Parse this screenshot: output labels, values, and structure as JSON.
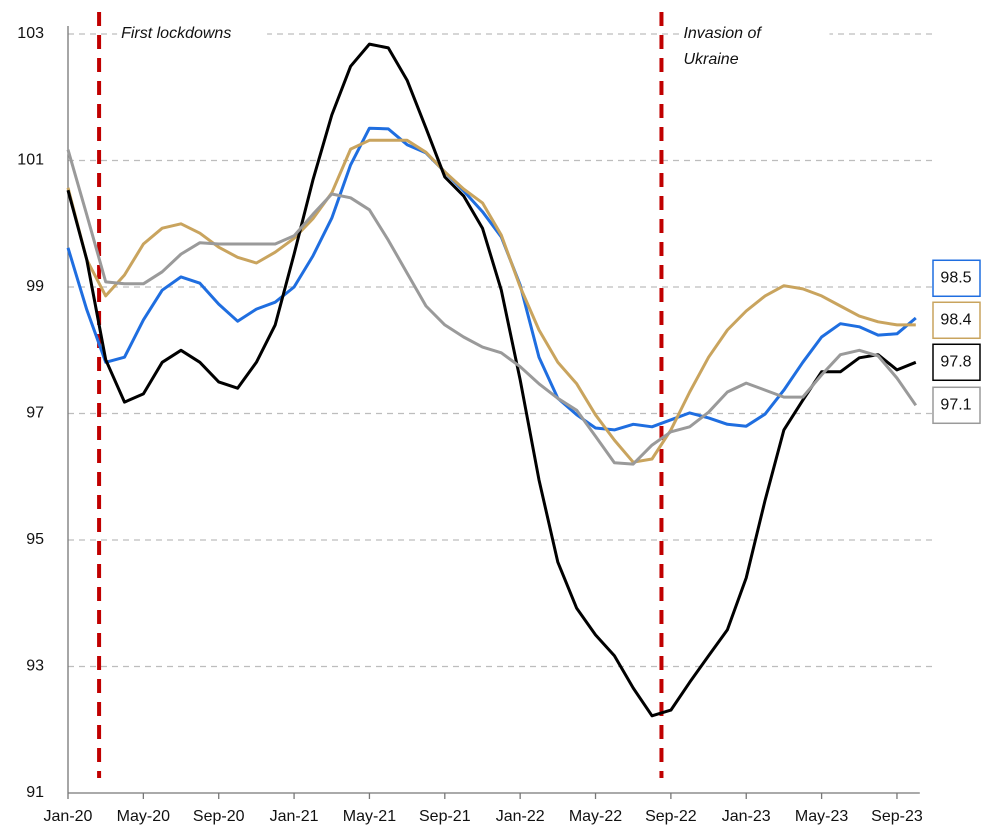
{
  "chart_data": {
    "type": "line",
    "categories": [
      "Jan-20",
      null,
      null,
      null,
      "May-20",
      null,
      null,
      null,
      "Sep-20",
      null,
      null,
      null,
      "Jan-21",
      null,
      null,
      null,
      "May-21",
      null,
      null,
      null,
      "Sep-21",
      null,
      null,
      null,
      "Jan-22",
      null,
      null,
      null,
      "May-22",
      null,
      null,
      null,
      "Sep-22",
      null,
      null,
      null,
      "Jan-23",
      null,
      null,
      null,
      "May-23",
      null,
      null,
      null,
      "Sep-23",
      null
    ],
    "series": [
      {
        "color": "#1f6ee0",
        "values": [
          99.62,
          98.64,
          97.81,
          97.89,
          98.48,
          98.95,
          99.16,
          99.06,
          98.73,
          98.46,
          98.65,
          98.76,
          99.0,
          99.49,
          100.09,
          100.93,
          101.51,
          101.5,
          101.25,
          101.12,
          100.82,
          100.52,
          100.19,
          99.79,
          99.03,
          97.89,
          97.24,
          96.98,
          96.77,
          96.74,
          96.83,
          96.79,
          96.9,
          97.01,
          96.93,
          96.83,
          96.8,
          96.99,
          97.37,
          97.81,
          98.21,
          98.42,
          98.37,
          98.24,
          98.26,
          98.51
        ],
        "value_labels": [
          null,
          null,
          null,
          null,
          null,
          null,
          null,
          null,
          null,
          null,
          null,
          null,
          null,
          null,
          null,
          null,
          null,
          null,
          null,
          null,
          null,
          null,
          null,
          null,
          null,
          null,
          null,
          null,
          null,
          null,
          null,
          null,
          null,
          null,
          null,
          null,
          null,
          null,
          null,
          null,
          null,
          null,
          null,
          null,
          null,
          "98.5"
        ]
      },
      {
        "color": "#c9a45e",
        "values": [
          100.57,
          99.43,
          98.86,
          99.19,
          99.68,
          99.93,
          100.0,
          99.85,
          99.63,
          99.47,
          99.38,
          99.55,
          99.77,
          100.08,
          100.49,
          101.18,
          101.32,
          101.32,
          101.32,
          101.13,
          100.82,
          100.55,
          100.33,
          99.82,
          99.0,
          98.32,
          97.81,
          97.47,
          96.98,
          96.58,
          96.23,
          96.28,
          96.74,
          97.34,
          97.89,
          98.32,
          98.62,
          98.86,
          99.02,
          98.97,
          98.86,
          98.7,
          98.54,
          98.45,
          98.4,
          98.4
        ],
        "value_labels": [
          null,
          null,
          null,
          null,
          null,
          null,
          null,
          null,
          null,
          null,
          null,
          null,
          null,
          null,
          null,
          null,
          null,
          null,
          null,
          null,
          null,
          null,
          null,
          null,
          null,
          null,
          null,
          null,
          null,
          null,
          null,
          null,
          null,
          null,
          null,
          null,
          null,
          null,
          null,
          null,
          null,
          null,
          null,
          null,
          null,
          "98.4"
        ]
      },
      {
        "color": "#000000",
        "values": [
          100.53,
          99.43,
          97.85,
          97.18,
          97.31,
          97.81,
          98.0,
          97.81,
          97.5,
          97.4,
          97.81,
          98.4,
          99.52,
          100.69,
          101.72,
          102.49,
          102.84,
          102.78,
          102.27,
          101.51,
          100.74,
          100.44,
          99.93,
          98.95,
          97.53,
          95.95,
          94.65,
          93.92,
          93.5,
          93.17,
          92.66,
          92.22,
          92.31,
          92.75,
          93.17,
          93.58,
          94.4,
          95.63,
          96.74,
          97.21,
          97.66,
          97.66,
          97.88,
          97.93,
          97.69,
          97.81
        ],
        "value_labels": [
          null,
          null,
          null,
          null,
          null,
          null,
          null,
          null,
          null,
          null,
          null,
          null,
          null,
          null,
          null,
          null,
          null,
          null,
          null,
          null,
          null,
          null,
          null,
          null,
          null,
          null,
          null,
          null,
          null,
          null,
          null,
          null,
          null,
          null,
          null,
          null,
          null,
          null,
          null,
          null,
          null,
          null,
          null,
          null,
          null,
          "97.8"
        ]
      },
      {
        "color": "#9a9a9a",
        "values": [
          101.17,
          100.14,
          99.08,
          99.05,
          99.05,
          99.24,
          99.52,
          99.7,
          99.68,
          99.68,
          99.68,
          99.68,
          99.81,
          100.15,
          100.47,
          100.41,
          100.22,
          99.74,
          99.22,
          98.7,
          98.4,
          98.21,
          98.05,
          97.96,
          97.74,
          97.47,
          97.24,
          97.05,
          96.64,
          96.22,
          96.2,
          96.5,
          96.71,
          96.79,
          97.02,
          97.34,
          97.48,
          97.37,
          97.26,
          97.26,
          97.61,
          97.93,
          98.0,
          97.91,
          97.56,
          97.13
        ],
        "value_labels": [
          null,
          null,
          null,
          null,
          null,
          null,
          null,
          null,
          null,
          null,
          null,
          null,
          null,
          null,
          null,
          null,
          null,
          null,
          null,
          null,
          null,
          null,
          null,
          null,
          null,
          null,
          null,
          null,
          null,
          null,
          null,
          null,
          null,
          null,
          null,
          null,
          null,
          null,
          null,
          null,
          null,
          null,
          null,
          null,
          null,
          "97.1"
        ]
      }
    ],
    "ylim": [
      91,
      103
    ],
    "yticks": [
      91,
      93,
      95,
      97,
      99,
      101,
      103
    ],
    "grid": true,
    "annotations": [
      {
        "x": 1.65,
        "text": [
          "First lockdowns"
        ],
        "color": "#c00000"
      },
      {
        "x": 31.5,
        "text": [
          "Invasion of",
          "Ukraine"
        ],
        "color": "#c00000"
      }
    ]
  }
}
